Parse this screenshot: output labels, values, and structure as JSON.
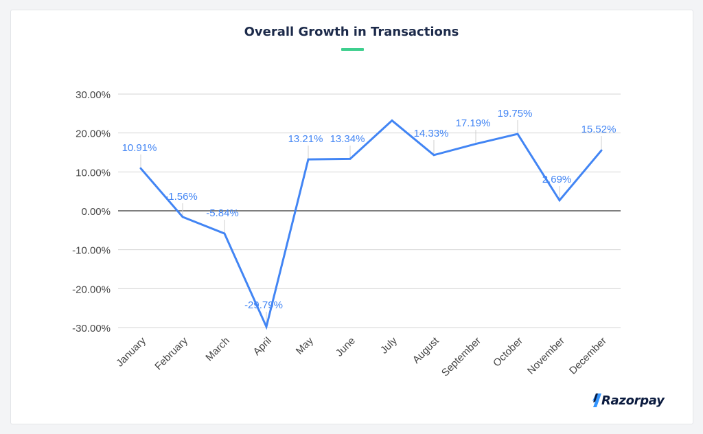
{
  "page": {
    "title": "Overall Growth in Transactions",
    "brand": "Razorpay",
    "accent_color": "#3ecf8e",
    "title_color": "#1c2a4a",
    "brand_color": "#0b1b3f"
  },
  "chart_data": {
    "type": "line",
    "title": "Overall Growth in Transactions",
    "xlabel": "",
    "ylabel": "",
    "categories": [
      "January",
      "February",
      "March",
      "April",
      "May",
      "June",
      "July",
      "August",
      "September",
      "October",
      "November",
      "December"
    ],
    "series": [
      {
        "color": "#4285f4",
        "values": [
          10.91,
          -1.56,
          -5.84,
          -29.79,
          13.21,
          13.34,
          23.2,
          14.33,
          17.19,
          19.75,
          2.69,
          15.52
        ],
        "labels": [
          "10.91%",
          "-1.56%",
          "-5.84%",
          "-29.79%",
          "13.21%",
          "13.34%",
          null,
          "14.33%",
          "17.19%",
          "19.75%",
          "2.69%",
          "15.52%"
        ]
      }
    ],
    "ylim": [
      -30,
      30
    ],
    "yticks": [
      30,
      20,
      10,
      0,
      -10,
      -20,
      -30
    ],
    "ytick_labels": [
      "30.00%",
      "20.00%",
      "10.00%",
      "0.00%",
      "-10.00%",
      "-20.00%",
      "-30.00%"
    ],
    "grid": true,
    "legend": "none"
  }
}
